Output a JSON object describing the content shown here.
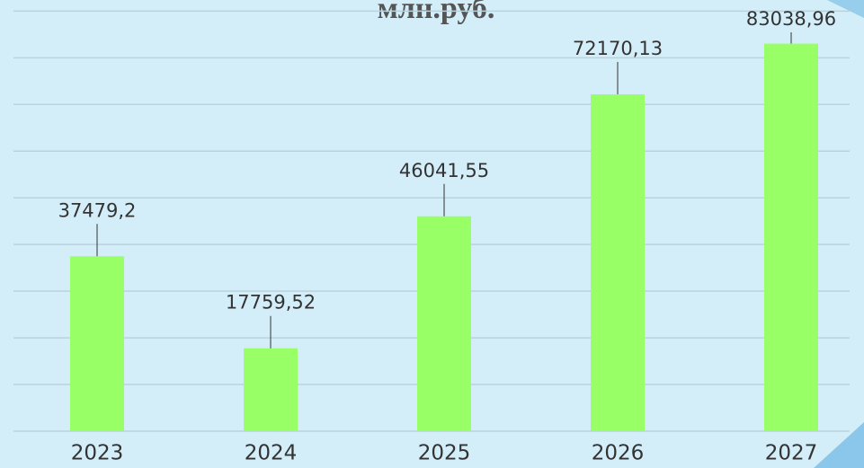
{
  "chart_data": {
    "type": "bar",
    "title": "млн.руб.",
    "categories": [
      "2023",
      "2024",
      "2025",
      "2026",
      "2027"
    ],
    "values": [
      37479.2,
      17759.52,
      46041.55,
      72170.13,
      83038.96
    ],
    "value_labels": [
      "37479,2",
      "17759,52",
      "46041,55",
      "72170,13",
      "83038,96"
    ],
    "color": "#99ff66",
    "ylim": [
      0,
      92000
    ],
    "grid_lines": [
      0,
      10000,
      20000,
      30000,
      40000,
      50000,
      60000,
      70000,
      80000,
      90000
    ],
    "grid": true
  }
}
